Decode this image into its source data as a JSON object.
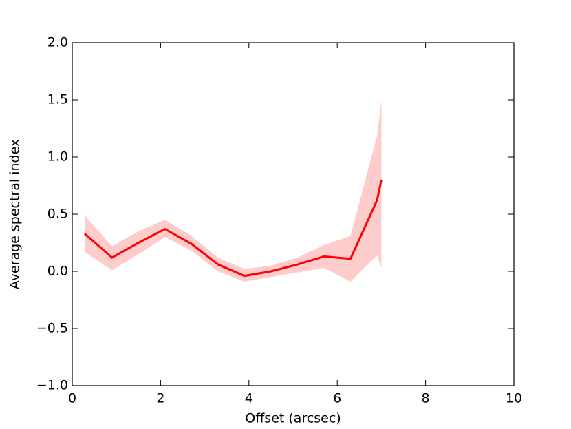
{
  "chart_data": {
    "type": "line",
    "xlabel": "Offset (arcsec)",
    "ylabel": "Average spectral index",
    "x": [
      0.28,
      0.9,
      1.5,
      2.1,
      2.7,
      3.3,
      3.9,
      4.5,
      5.1,
      5.7,
      6.3,
      6.9,
      7.0
    ],
    "series": [
      {
        "color": "#ff0000",
        "band_color": "#ffcccc",
        "values": [
          0.33,
          0.12,
          0.25,
          0.37,
          0.24,
          0.06,
          -0.04,
          0.0,
          0.06,
          0.13,
          0.11,
          0.62,
          0.8
        ],
        "lower": [
          0.17,
          0.01,
          0.15,
          0.3,
          0.18,
          0.0,
          -0.09,
          -0.05,
          -0.01,
          0.03,
          -0.09,
          0.14,
          0.03
        ],
        "upper": [
          0.49,
          0.22,
          0.35,
          0.45,
          0.31,
          0.12,
          0.02,
          0.05,
          0.12,
          0.23,
          0.31,
          1.18,
          1.5
        ]
      }
    ],
    "xlim": [
      0,
      10
    ],
    "xticks": [
      0,
      2,
      4,
      6,
      8,
      10
    ],
    "ylim": [
      -1.0,
      2.0
    ],
    "yticks": [
      {
        "value": -1.0,
        "label": "−1.0"
      },
      {
        "value": -0.5,
        "label": "−0.5"
      },
      {
        "value": 0.0,
        "label": "0.0"
      },
      {
        "value": 0.5,
        "label": "0.5"
      },
      {
        "value": 1.0,
        "label": "1.0"
      },
      {
        "value": 1.5,
        "label": "1.5"
      },
      {
        "value": 2.0,
        "label": "2.0"
      }
    ],
    "grid": false
  }
}
